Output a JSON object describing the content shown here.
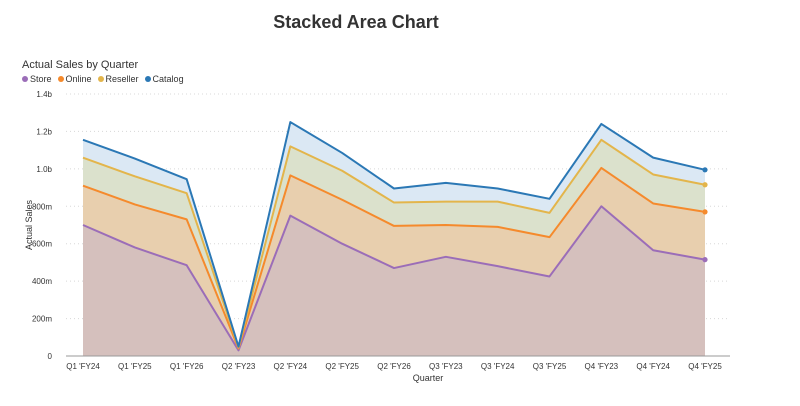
{
  "title": "Stacked Area Chart",
  "subtitle": "Actual Sales by Quarter",
  "chart_data": {
    "type": "area",
    "stacked": true,
    "xlabel": "Quarter",
    "ylabel": "Actual Sales",
    "ylim": [
      0,
      1400000000
    ],
    "y_ticks": [
      {
        "value": 0,
        "label": "0"
      },
      {
        "value": 200000000,
        "label": "200m"
      },
      {
        "value": 400000000,
        "label": "400m"
      },
      {
        "value": 600000000,
        "label": "600m"
      },
      {
        "value": 800000000,
        "label": "800m"
      },
      {
        "value": 1000000000,
        "label": "1.0b"
      },
      {
        "value": 1200000000,
        "label": "1.2b"
      },
      {
        "value": 1400000000,
        "label": "1.4b"
      }
    ],
    "grid": "horizontal dotted",
    "legend_position": "top-left",
    "categories": [
      "Q1 'FY24",
      "Q1 'FY25",
      "Q1 'FY26",
      "Q2 'FY23",
      "Q2 'FY24",
      "Q2 'FY25",
      "Q2 'FY26",
      "Q3 'FY23",
      "Q3 'FY24",
      "Q3 'FY25",
      "Q4 'FY23",
      "Q4 'FY24",
      "Q4 'FY25"
    ],
    "series": [
      {
        "name": "Store",
        "color": "#9b6db8",
        "values": [
          700000000,
          580000000,
          485000000,
          30000000,
          750000000,
          600000000,
          470000000,
          530000000,
          480000000,
          425000000,
          800000000,
          565000000,
          515000000
        ]
      },
      {
        "name": "Online",
        "color": "#f58a2c",
        "values": [
          210000000,
          230000000,
          245000000,
          10000000,
          215000000,
          235000000,
          225000000,
          170000000,
          210000000,
          210000000,
          205000000,
          250000000,
          255000000
        ]
      },
      {
        "name": "Reseller",
        "color": "#e3b54b",
        "values": [
          150000000,
          150000000,
          140000000,
          5000000,
          155000000,
          155000000,
          125000000,
          125000000,
          135000000,
          130000000,
          150000000,
          155000000,
          145000000
        ]
      },
      {
        "name": "Catalog",
        "color": "#2b78b5",
        "values": [
          95000000,
          95000000,
          75000000,
          5000000,
          130000000,
          95000000,
          75000000,
          100000000,
          70000000,
          75000000,
          85000000,
          90000000,
          80000000
        ]
      }
    ]
  }
}
